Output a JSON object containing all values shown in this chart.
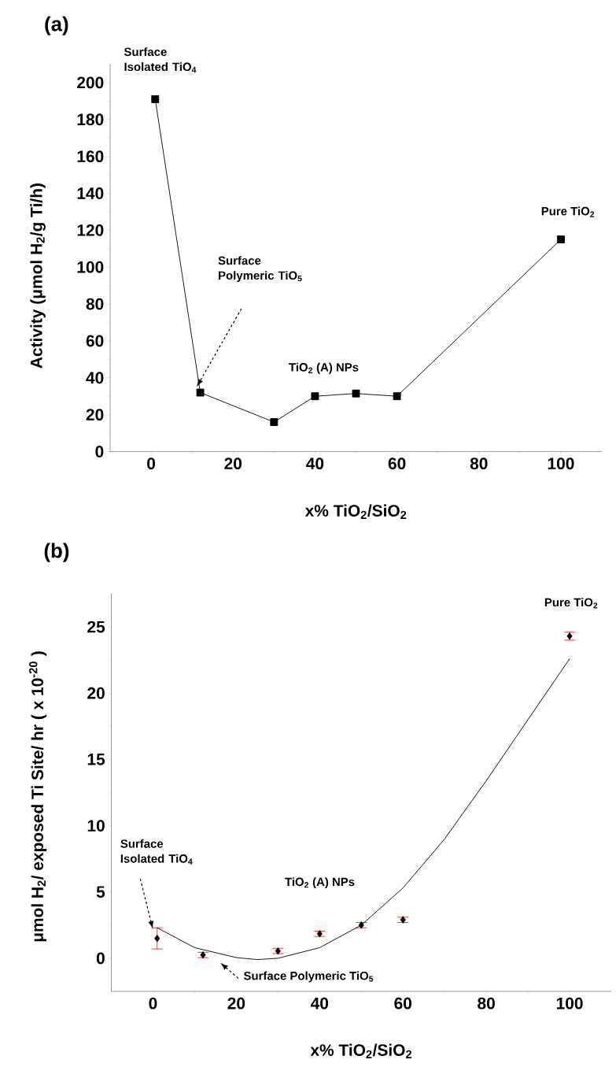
{
  "chart_data": [
    {
      "type": "line",
      "title": "(a)",
      "xlabel": "x% TiO$_{2}$/SiO$_{2}$",
      "ylabel": "Activity (μmol H$_{2}$/g Ti/h)",
      "x": [
        1,
        12,
        30,
        40,
        50,
        60,
        100
      ],
      "series": [
        {
          "color": "#000000",
          "values": [
            191,
            32,
            16,
            30,
            31.5,
            30,
            115
          ]
        }
      ],
      "marker": "square",
      "line_style": "solid",
      "grid": false,
      "xlim": [
        -10,
        110
      ],
      "ylim": [
        0,
        210
      ],
      "xticks": [
        0,
        20,
        40,
        60,
        80,
        100
      ],
      "yticks": [
        0,
        20,
        40,
        60,
        80,
        100,
        120,
        140,
        160,
        180,
        200
      ],
      "annotations": [
        {
          "text": "Surface Isolated TiO$_{4}$",
          "x": 1,
          "y": 191
        },
        "Surface Polymeric TiO$_{5}$",
        {
          "text": "TiO$_{2}$ (A) NPs",
          "x": 50,
          "y": 31.5
        },
        {
          "text": "Pure TiO$_{2}$",
          "x": 100,
          "y": 115
        }
      ]
    },
    {
      "type": "scatter",
      "title": "(b)",
      "xlabel": "x% TiO$_{2}$/SiO$_{2}$",
      "ylabel": "μmol H$_{2}$/ exposed Ti Site/ hr ( x 10$^{-20}$ )",
      "x": [
        1,
        12,
        30,
        40,
        50,
        60,
        100
      ],
      "series": [
        {
          "type": "scatter",
          "color": "#000000",
          "values": [
            1.5,
            0.25,
            0.55,
            1.85,
            2.5,
            2.9,
            24.3
          ],
          "errors": [
            0.8,
            0.2,
            0.2,
            0.2,
            0.2,
            0.2,
            0.3
          ]
        },
        {
          "type": "line",
          "color": "#000000",
          "marker": "none",
          "x": [
            1,
            10,
            20,
            25,
            30,
            40,
            50,
            60,
            70,
            80,
            90,
            100
          ],
          "values": [
            2.3,
            0.8,
            0.05,
            -0.1,
            0.0,
            0.8,
            2.5,
            5.3,
            9.0,
            13.4,
            18.0,
            22.6
          ]
        }
      ],
      "marker": "diamond",
      "line_style": "solid",
      "grid": false,
      "xlim": [
        -10,
        110
      ],
      "ylim": [
        -2.5,
        27.5
      ],
      "xticks": [
        0,
        20,
        40,
        60,
        80,
        100
      ],
      "yticks": [
        0,
        5,
        10,
        15,
        20,
        25
      ],
      "annotations": [
        "Surface Isolated TiO$_{4}$",
        "Surface Polymeric TiO$_{5}$",
        "TiO$_{2}$ (A) NPs",
        {
          "text": "Pure TiO$_{2}$",
          "x": 100,
          "y": 24.3
        }
      ]
    }
  ]
}
